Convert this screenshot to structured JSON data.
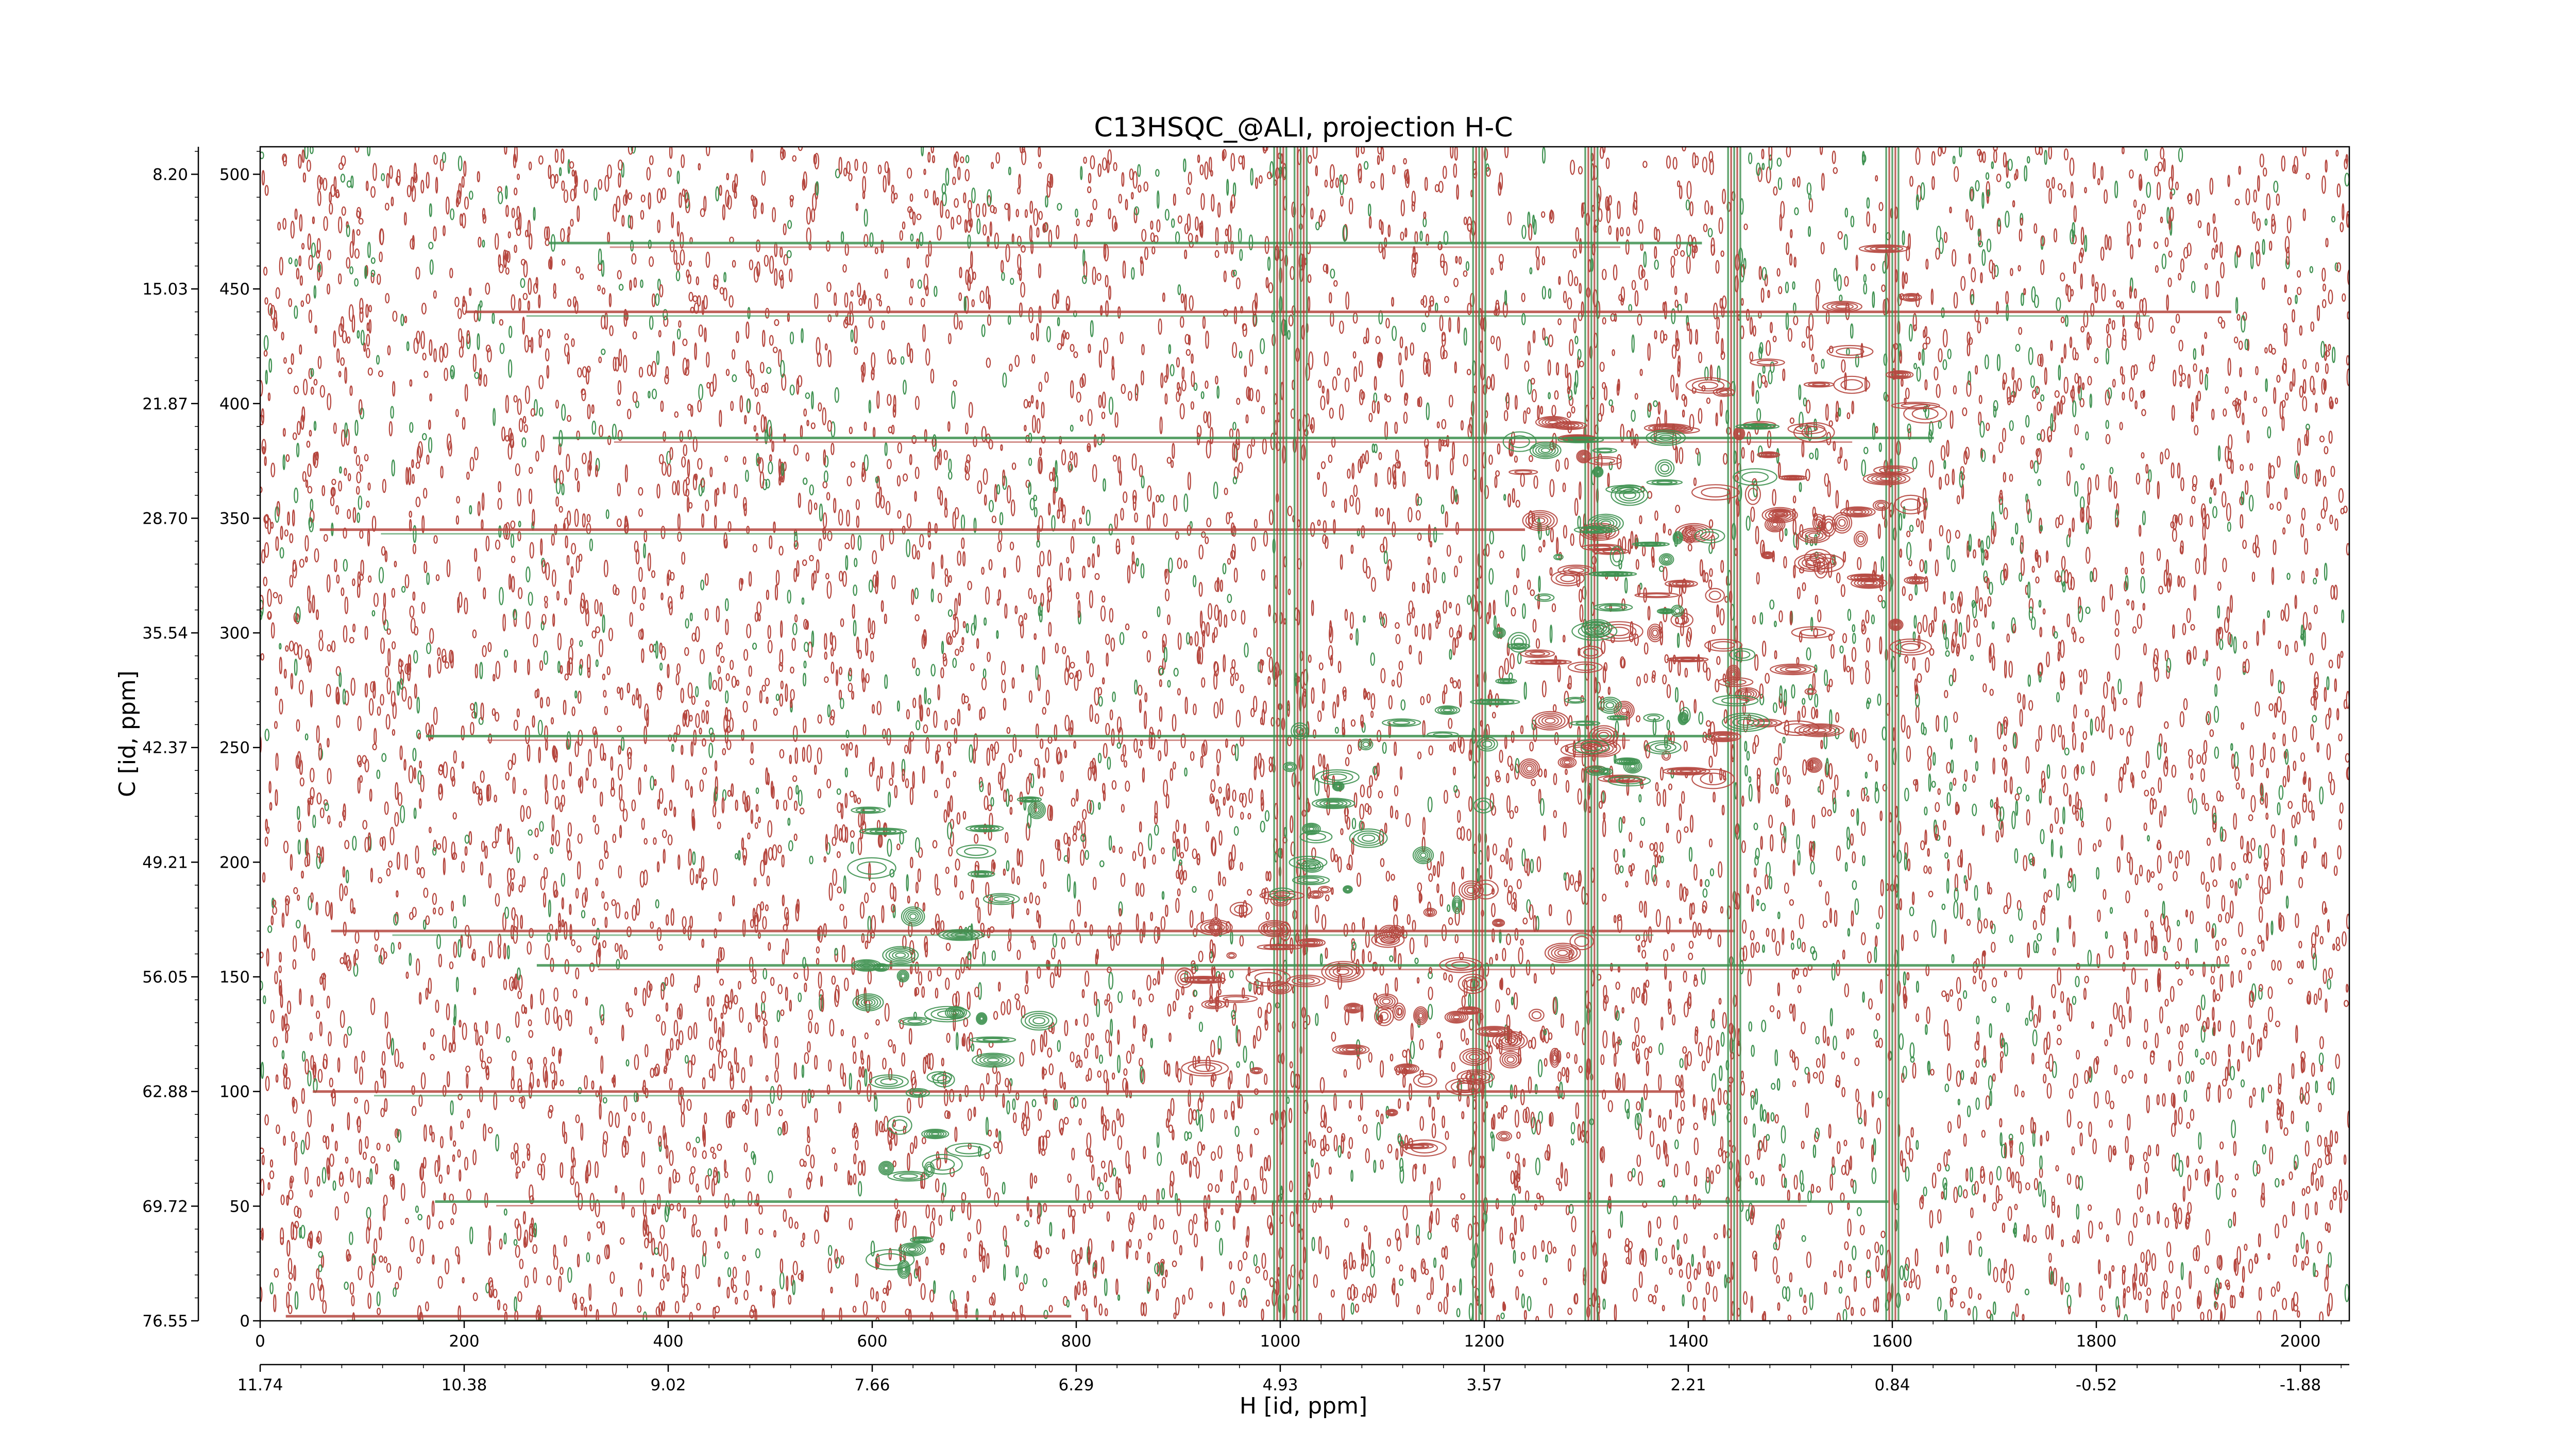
{
  "chart_data": {
    "type": "heatmap",
    "subtype": "2D NMR contour plot (HSQC)",
    "title": "C13HSQC_@ALI, projection H-C",
    "xlabel": "H [id, ppm]",
    "ylabel": "C [id, ppm]",
    "x_index_range": [
      0,
      2048
    ],
    "y_index_range": [
      0,
      512
    ],
    "x_index_ticks": [
      0,
      200,
      400,
      600,
      800,
      1000,
      1200,
      1400,
      1600,
      1800,
      2000
    ],
    "x_ppm_ticks": [
      "11.74",
      "10.38",
      "9.02",
      "7.66",
      "6.29",
      "4.93",
      "3.57",
      "2.21",
      "0.84",
      "-0.52",
      "-1.88"
    ],
    "y_index_ticks": [
      0,
      50,
      100,
      150,
      200,
      250,
      300,
      350,
      400,
      450,
      500
    ],
    "y_ppm_ticks": [
      "76.55",
      "69.72",
      "62.88",
      "56.05",
      "49.21",
      "42.37",
      "35.54",
      "28.70",
      "21.87",
      "15.03",
      "8.20"
    ],
    "colors": {
      "positive": "#b5463e",
      "negative": "#3e9150",
      "frame": "#000000",
      "background": "#ffffff"
    },
    "vertical_streaks_x": [
      1000,
      1020,
      1195,
      1305,
      1445,
      1600
    ],
    "horizontal_streaks_y": [
      470,
      440,
      385,
      345,
      255,
      170,
      155,
      100,
      52,
      2
    ],
    "peak_regions": [
      {
        "sign": "positive",
        "x": [
          1230,
          1540
        ],
        "y": [
          235,
          395
        ]
      },
      {
        "sign": "positive",
        "x": [
          1390,
          1640
        ],
        "y": [
          290,
          420
        ]
      },
      {
        "sign": "positive",
        "x": [
          1540,
          1620
        ],
        "y": [
          420,
          470
        ]
      },
      {
        "sign": "positive",
        "x": [
          900,
          1300
        ],
        "y": [
          95,
          190
        ]
      },
      {
        "sign": "positive",
        "x": [
          1100,
          1230
        ],
        "y": [
          60,
          160
        ]
      },
      {
        "sign": "negative",
        "x": [
          1200,
          1480
        ],
        "y": [
          235,
          395
        ]
      },
      {
        "sign": "negative",
        "x": [
          1000,
          1200
        ],
        "y": [
          180,
          270
        ]
      },
      {
        "sign": "negative",
        "x": [
          590,
          770
        ],
        "y": [
          60,
          230
        ]
      },
      {
        "sign": "negative",
        "x": [
          600,
          650
        ],
        "y": [
          5,
          70
        ]
      }
    ]
  }
}
